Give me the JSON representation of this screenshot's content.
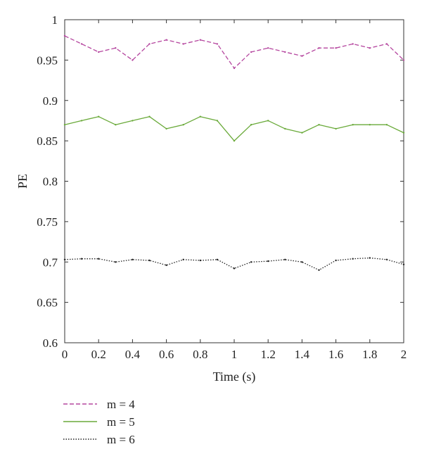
{
  "chart_data": {
    "type": "line",
    "title": "",
    "xlabel": "Time (s)",
    "ylabel": "PE",
    "xlim": [
      0,
      2
    ],
    "ylim": [
      0.6,
      1
    ],
    "xticks": [
      0,
      0.2,
      0.4,
      0.6,
      0.8,
      1,
      1.2,
      1.4,
      1.6,
      1.8,
      2
    ],
    "xtick_labels": [
      "0",
      "0.2",
      "0.4",
      "0.6",
      "0.8",
      "1",
      "1.2",
      "1.4",
      "1.6",
      "1.8",
      "2"
    ],
    "yticks": [
      0.6,
      0.65,
      0.7,
      0.75,
      0.8,
      0.85,
      0.9,
      0.95,
      1
    ],
    "ytick_labels": [
      "0.6",
      "0.65",
      "0.7",
      "0.75",
      "0.8",
      "0.85",
      "0.9",
      "0.95",
      "1"
    ],
    "grid": false,
    "legend_position": "bottom-left, below plot",
    "series": [
      {
        "name": "m = 4",
        "color": "#b5469f",
        "line_style": "dashed",
        "x": [
          0,
          0.1,
          0.2,
          0.3,
          0.4,
          0.5,
          0.6,
          0.7,
          0.8,
          0.9,
          1.0,
          1.1,
          1.2,
          1.3,
          1.4,
          1.5,
          1.6,
          1.7,
          1.8,
          1.9,
          2.0
        ],
        "y": [
          0.98,
          0.97,
          0.96,
          0.965,
          0.95,
          0.97,
          0.975,
          0.97,
          0.975,
          0.97,
          0.94,
          0.96,
          0.965,
          0.96,
          0.955,
          0.965,
          0.965,
          0.97,
          0.965,
          0.97,
          0.95
        ]
      },
      {
        "name": "m = 5",
        "color": "#6aaa3a",
        "line_style": "solid",
        "x": [
          0,
          0.1,
          0.2,
          0.3,
          0.4,
          0.5,
          0.6,
          0.7,
          0.8,
          0.9,
          1.0,
          1.1,
          1.2,
          1.3,
          1.4,
          1.5,
          1.6,
          1.7,
          1.8,
          1.9,
          2.0
        ],
        "y": [
          0.87,
          0.875,
          0.88,
          0.87,
          0.875,
          0.88,
          0.865,
          0.87,
          0.88,
          0.875,
          0.85,
          0.87,
          0.875,
          0.865,
          0.86,
          0.87,
          0.865,
          0.87,
          0.87,
          0.87,
          0.86
        ]
      },
      {
        "name": "m = 6",
        "color": "#222222",
        "line_style": "dotted",
        "x": [
          0,
          0.1,
          0.2,
          0.3,
          0.4,
          0.5,
          0.6,
          0.7,
          0.8,
          0.9,
          1.0,
          1.1,
          1.2,
          1.3,
          1.4,
          1.5,
          1.6,
          1.7,
          1.8,
          1.9,
          2.0
        ],
        "y": [
          0.703,
          0.704,
          0.704,
          0.7,
          0.703,
          0.702,
          0.696,
          0.703,
          0.702,
          0.703,
          0.692,
          0.7,
          0.701,
          0.703,
          0.7,
          0.69,
          0.702,
          0.704,
          0.705,
          0.703,
          0.697
        ]
      }
    ]
  }
}
